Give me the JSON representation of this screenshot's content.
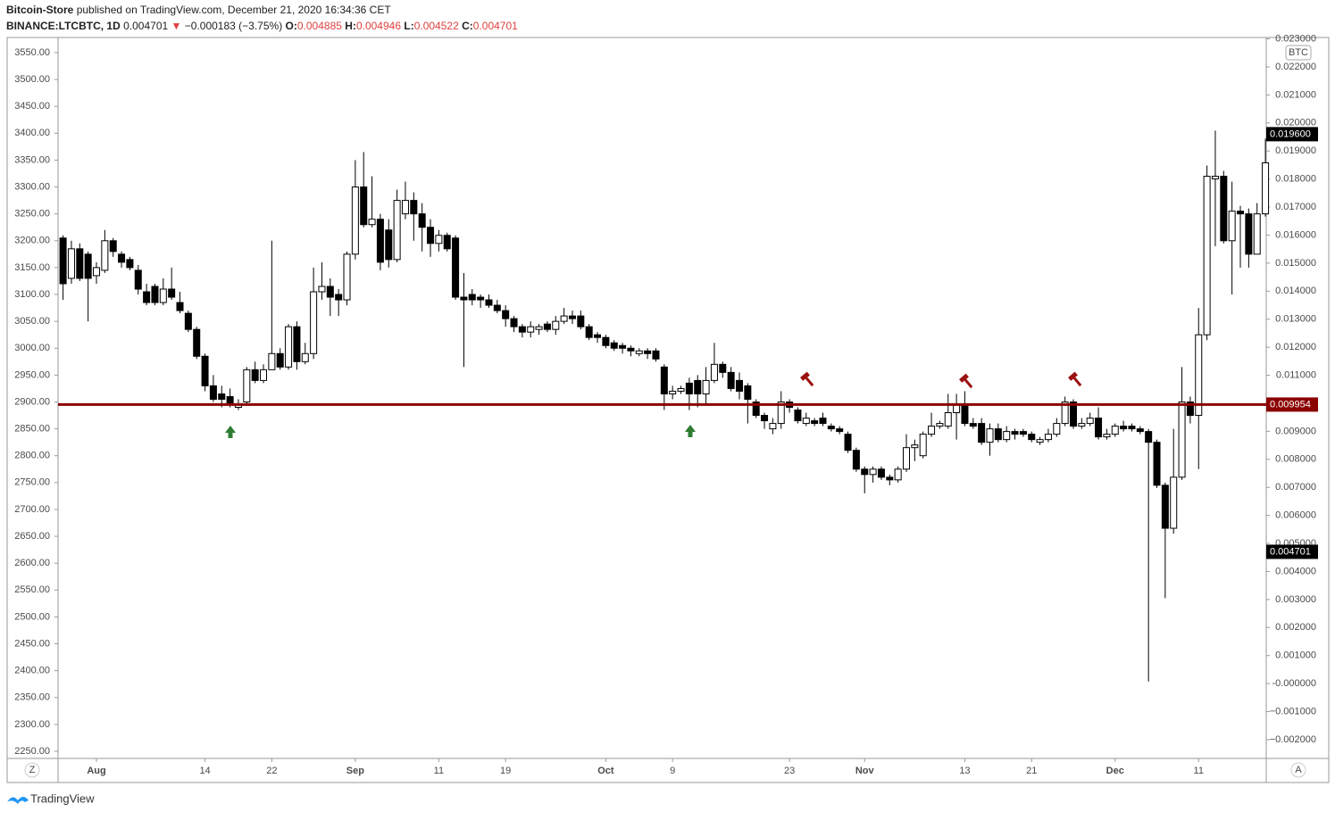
{
  "header": {
    "publisher": "Bitcoin-Store",
    "published": "published on TradingView.com, December 21, 2020 16:34:36 CET",
    "symbol": "BINANCE:LTCBTC, 1D",
    "last": "0.004701",
    "arrow": "▼",
    "change": "−0.000183 (−3.75%)",
    "o_label": "O:",
    "o": "0.004885",
    "h_label": "H:",
    "h": "0.004946",
    "l_label": "L:",
    "l": "0.004522",
    "c_label": "C:",
    "c": "0.004701"
  },
  "chart_data": {
    "type": "candlestick",
    "currency": "BTC",
    "xlim": [
      -0.6,
      144.1
    ],
    "xticks": [
      {
        "value": 4,
        "label": "Aug"
      },
      {
        "value": 17,
        "label": "14"
      },
      {
        "value": 25,
        "label": "22"
      },
      {
        "value": 35,
        "label": "Sep"
      },
      {
        "value": 45,
        "label": "11"
      },
      {
        "value": 53,
        "label": "19"
      },
      {
        "value": 65,
        "label": "Oct"
      },
      {
        "value": 73,
        "label": "9"
      },
      {
        "value": 87,
        "label": "23"
      },
      {
        "value": 96,
        "label": "Nov"
      },
      {
        "value": 108,
        "label": "13"
      },
      {
        "value": 116,
        "label": "21"
      },
      {
        "value": 126,
        "label": "Dec"
      },
      {
        "value": 136,
        "label": "11"
      }
    ],
    "ylim": [
      2236.7,
      3578.2
    ],
    "yticks": [
      {
        "value": 3550,
        "label": "3550.00"
      },
      {
        "value": 3500,
        "label": "3500.00"
      },
      {
        "value": 3450,
        "label": "3450.00"
      },
      {
        "value": 3400,
        "label": "3400.00"
      },
      {
        "value": 3350,
        "label": "3350.00"
      },
      {
        "value": 3300,
        "label": "3300.00"
      },
      {
        "value": 3250,
        "label": "3250.00"
      },
      {
        "value": 3200,
        "label": "3200.00"
      },
      {
        "value": 3150,
        "label": "3150.00"
      },
      {
        "value": 3100,
        "label": "3100.00"
      },
      {
        "value": 3050,
        "label": "3050.00"
      },
      {
        "value": 3000,
        "label": "3000.00"
      },
      {
        "value": 2950,
        "label": "2950.00"
      },
      {
        "value": 2900,
        "label": "2900.00"
      },
      {
        "value": 2850,
        "label": "2850.00"
      },
      {
        "value": 2800,
        "label": "2800.00"
      },
      {
        "value": 2750,
        "label": "2750.00"
      },
      {
        "value": 2700,
        "label": "2700.00"
      },
      {
        "value": 2650,
        "label": "2650.00"
      },
      {
        "value": 2600,
        "label": "2600.00"
      },
      {
        "value": 2550,
        "label": "2550.00"
      },
      {
        "value": 2500,
        "label": "2500.00"
      },
      {
        "value": 2450,
        "label": "2450.00"
      },
      {
        "value": 2400,
        "label": "2400.00"
      },
      {
        "value": 2350,
        "label": "2350.00"
      },
      {
        "value": 2300,
        "label": "2300.00"
      },
      {
        "value": 2250,
        "label": "2250.00"
      }
    ],
    "y2lim": [
      -0.00267,
      0.02305
    ],
    "y2ticks": [
      {
        "value": 0.023,
        "label": "0.023000"
      },
      {
        "value": 0.022,
        "label": "0.022000"
      },
      {
        "value": 0.021,
        "label": "0.021000"
      },
      {
        "value": 0.02,
        "label": "0.020000"
      },
      {
        "value": 0.019,
        "label": "0.019000"
      },
      {
        "value": 0.018,
        "label": "0.018000"
      },
      {
        "value": 0.017,
        "label": "0.017000"
      },
      {
        "value": 0.016,
        "label": "0.016000"
      },
      {
        "value": 0.015,
        "label": "0.015000"
      },
      {
        "value": 0.014,
        "label": "0.014000"
      },
      {
        "value": 0.013,
        "label": "0.013000"
      },
      {
        "value": 0.012,
        "label": "0.012000"
      },
      {
        "value": 0.011,
        "label": "0.011000"
      },
      {
        "value": 0.01,
        "label": "0.010000"
      },
      {
        "value": 0.009,
        "label": "0.009000"
      },
      {
        "value": 0.008,
        "label": "0.008000"
      },
      {
        "value": 0.007,
        "label": "0.007000"
      },
      {
        "value": 0.006,
        "label": "0.006000"
      },
      {
        "value": 0.005,
        "label": "0.005000"
      },
      {
        "value": 0.004,
        "label": "0.004000"
      },
      {
        "value": 0.003,
        "label": "0.003000"
      },
      {
        "value": 0.002,
        "label": "0.002000"
      },
      {
        "value": 0.001,
        "label": "0.001000"
      },
      {
        "value": 0,
        "label": "-0.000000"
      },
      {
        "value": -0.001,
        "label": "−0.001000"
      },
      {
        "value": -0.002,
        "label": "−0.002000"
      }
    ],
    "hline": 0.009954,
    "hline_color": "#8b0000",
    "price_labels": [
      {
        "value": 0.0196,
        "label": "0.019600"
      },
      0.004701
    ],
    "up_color": "#ffffff",
    "down_color": "#000000",
    "open": [
      3205,
      3130,
      3185,
      3175,
      3135,
      3145,
      3200,
      3175,
      3165,
      3145,
      3105,
      3115,
      3085,
      3110,
      3085,
      3065,
      3035,
      2985,
      2930,
      2915,
      2910,
      2890,
      2900,
      2960,
      2940,
      2960,
      2990,
      2965,
      3040,
      2975,
      2990,
      3105,
      3115,
      3100,
      3090,
      3175,
      3300,
      3230,
      3240,
      3220,
      3165,
      3250,
      3275,
      3250,
      3225,
      3195,
      3210,
      3205,
      3095,
      3100,
      3095,
      3090,
      3080,
      3070,
      3055,
      3040,
      3030,
      3035,
      3045,
      3035,
      3050,
      3060,
      3060,
      3040,
      3025,
      3020,
      3010,
      3005,
      3000,
      2990,
      2995,
      2995,
      2965,
      2915,
      2920,
      2935,
      2940,
      2915,
      2940,
      2970,
      2955,
      2940,
      2930,
      2900,
      2875,
      2850,
      2860,
      2900,
      2885,
      2860,
      2865,
      2870,
      2855,
      2850,
      2840,
      2810,
      2775,
      2765,
      2775,
      2760,
      2755,
      2775,
      2815,
      2800,
      2840,
      2855,
      2855,
      2880,
      2895,
      2860,
      2860,
      2825,
      2850,
      2830,
      2845,
      2845,
      2840,
      2825,
      2830,
      2840,
      2860,
      2900,
      2855,
      2860,
      2870,
      2835,
      2840,
      2855,
      2855,
      2850,
      2845,
      2825,
      2745,
      2665,
      2760,
      2900,
      2875,
      3025,
      3315,
      3320,
      3200,
      3255,
      3250,
      3175,
      3250
    ],
    "high": [
      3210,
      3200,
      3195,
      3180,
      3160,
      3220,
      3205,
      3180,
      3170,
      3155,
      3120,
      3120,
      3130,
      3150,
      3105,
      3070,
      3040,
      2990,
      2950,
      2930,
      2925,
      2905,
      2965,
      2975,
      2970,
      3200,
      3000,
      3045,
      3050,
      3010,
      3150,
      3160,
      3130,
      3110,
      3180,
      3350,
      3365,
      3320,
      3250,
      3240,
      3295,
      3310,
      3290,
      3270,
      3240,
      3220,
      3215,
      3210,
      3140,
      3110,
      3100,
      3100,
      3090,
      3080,
      3060,
      3045,
      3050,
      3045,
      3050,
      3060,
      3075,
      3070,
      3070,
      3045,
      3030,
      3025,
      3015,
      3010,
      3005,
      3000,
      3000,
      3000,
      2970,
      2930,
      2930,
      2945,
      2950,
      2965,
      3010,
      2975,
      2965,
      2955,
      2935,
      2905,
      2880,
      2870,
      2920,
      2905,
      2890,
      2880,
      2870,
      2880,
      2860,
      2855,
      2845,
      2815,
      2780,
      2780,
      2780,
      2765,
      2780,
      2840,
      2830,
      2845,
      2880,
      2865,
      2915,
      2915,
      2920,
      2870,
      2870,
      2860,
      2860,
      2855,
      2850,
      2850,
      2845,
      2835,
      2850,
      2870,
      2910,
      2905,
      2870,
      2880,
      2890,
      2850,
      2860,
      2865,
      2860,
      2855,
      2850,
      2830,
      2750,
      2850,
      2965,
      2910,
      3075,
      3340,
      3405,
      3330,
      3310,
      3265,
      3260,
      3270,
      3390
    ],
    "low": [
      3090,
      3120,
      3125,
      3050,
      3120,
      3140,
      3170,
      3150,
      3145,
      3100,
      3080,
      3080,
      3080,
      3090,
      3065,
      3030,
      2980,
      2920,
      2900,
      2890,
      2890,
      2885,
      2895,
      2935,
      2935,
      2960,
      2960,
      2960,
      2960,
      2970,
      2980,
      3090,
      3060,
      3060,
      3080,
      3165,
      3225,
      3225,
      3145,
      3150,
      3160,
      3240,
      3200,
      3180,
      3170,
      3180,
      3180,
      3090,
      2965,
      3080,
      3075,
      3075,
      3065,
      3040,
      3030,
      3020,
      3020,
      3025,
      3030,
      3025,
      3045,
      3045,
      3035,
      3015,
      3010,
      3000,
      2995,
      2990,
      2985,
      2985,
      2980,
      2975,
      2885,
      2905,
      2915,
      2885,
      2890,
      2895,
      2935,
      2945,
      2920,
      2905,
      2860,
      2870,
      2850,
      2840,
      2850,
      2880,
      2860,
      2855,
      2855,
      2855,
      2845,
      2840,
      2805,
      2770,
      2730,
      2750,
      2755,
      2745,
      2750,
      2770,
      2790,
      2795,
      2835,
      2850,
      2850,
      2830,
      2855,
      2850,
      2820,
      2800,
      2825,
      2825,
      2830,
      2835,
      2825,
      2820,
      2825,
      2835,
      2855,
      2850,
      2850,
      2855,
      2830,
      2830,
      2835,
      2845,
      2845,
      2840,
      2380,
      2740,
      2535,
      2655,
      2755,
      2860,
      2775,
      3015,
      3190,
      3195,
      3100,
      3150,
      3150,
      3175,
      3245
    ],
    "close": [
      3120,
      3185,
      3130,
      3130,
      3150,
      3200,
      3180,
      3160,
      3150,
      3110,
      3085,
      3085,
      3110,
      3095,
      3070,
      3035,
      2985,
      2930,
      2905,
      2905,
      2895,
      2895,
      2960,
      2940,
      2960,
      2990,
      2965,
      3040,
      2975,
      2990,
      3105,
      3115,
      3095,
      3090,
      3175,
      3300,
      3230,
      3240,
      3160,
      3165,
      3275,
      3275,
      3250,
      3225,
      3195,
      3210,
      3185,
      3095,
      3090,
      3090,
      3090,
      3080,
      3070,
      3055,
      3040,
      3030,
      3040,
      3040,
      3035,
      3050,
      3060,
      3055,
      3040,
      3020,
      3020,
      3005,
      3000,
      3000,
      2995,
      2995,
      2990,
      2980,
      2915,
      2920,
      2925,
      2915,
      2915,
      2940,
      2970,
      2955,
      2925,
      2920,
      2905,
      2875,
      2865,
      2860,
      2900,
      2890,
      2865,
      2870,
      2860,
      2860,
      2850,
      2845,
      2810,
      2775,
      2765,
      2775,
      2760,
      2755,
      2775,
      2815,
      2820,
      2840,
      2855,
      2860,
      2880,
      2895,
      2860,
      2855,
      2825,
      2850,
      2830,
      2845,
      2840,
      2840,
      2830,
      2830,
      2840,
      2860,
      2900,
      2855,
      2860,
      2870,
      2835,
      2840,
      2855,
      2850,
      2850,
      2845,
      2825,
      2745,
      2665,
      2760,
      2900,
      2875,
      3025,
      3320,
      3320,
      3200,
      3255,
      3250,
      3175,
      3250,
      3345
    ]
  },
  "footer": {
    "z": "Z",
    "a": "A",
    "brand": "TradingView"
  }
}
